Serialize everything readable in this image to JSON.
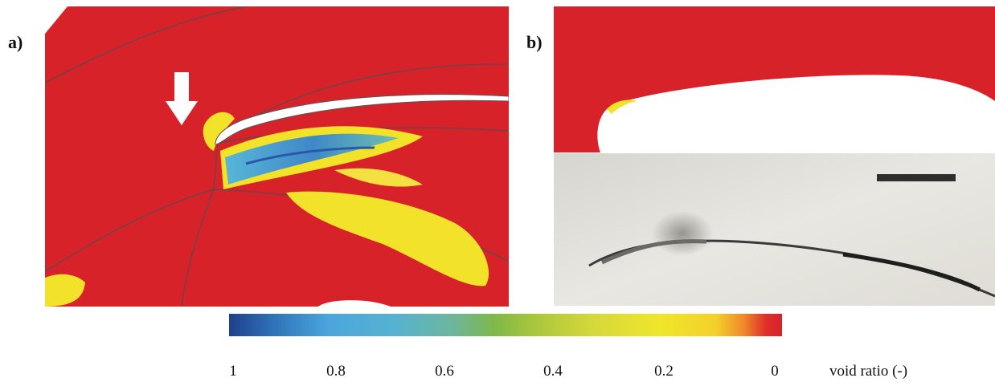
{
  "panel_a": {
    "label": "a)"
  },
  "panel_b": {
    "label": "b)"
  },
  "colorbar": {
    "title": "void ratio (-)",
    "ticks": [
      "1",
      "0.8",
      "0.6",
      "0.4",
      "0.2",
      "0"
    ]
  },
  "colors": {
    "background_red": "#d8222a",
    "void_yellow": "#f2e22a",
    "void_blue": "#4a9fd6",
    "photo_gray": "#e4e3dd"
  }
}
